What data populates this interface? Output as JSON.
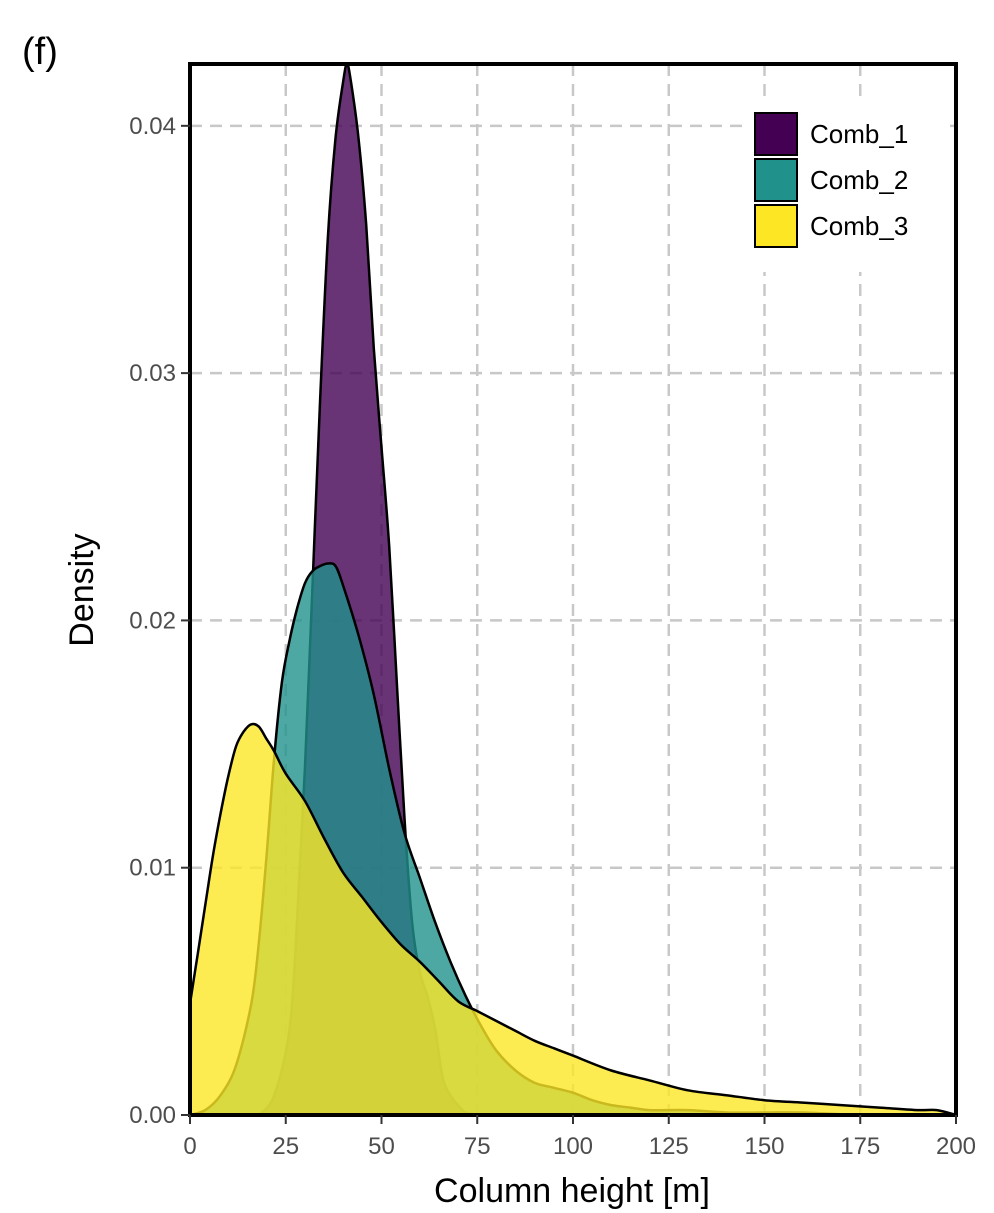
{
  "panel_label": "(f)",
  "chart_data": {
    "type": "area",
    "title": "",
    "xlabel": "Column height [m]",
    "ylabel": "Density",
    "xlim": [
      0,
      200
    ],
    "ylim": [
      0,
      0.0425
    ],
    "x_ticks": [
      0,
      25,
      50,
      75,
      100,
      125,
      150,
      175,
      200
    ],
    "x_tick_labels": [
      "0",
      "25",
      "50",
      "75",
      "100",
      "125",
      "150",
      "175",
      "200"
    ],
    "y_ticks": [
      0,
      0.01,
      0.02,
      0.03,
      0.04
    ],
    "y_tick_labels": [
      "0.00",
      "0.01",
      "0.02",
      "0.03",
      "0.04"
    ],
    "grid": true,
    "legend_position": "top-right",
    "series": [
      {
        "name": "Comb_1",
        "color": "#440154",
        "x": [
          18,
          22,
          26,
          28,
          30,
          32,
          34,
          36,
          38,
          40,
          41,
          42,
          44,
          46,
          48,
          50,
          52,
          54,
          56,
          58,
          60,
          62,
          64,
          66,
          68,
          70,
          72,
          76
        ],
        "y": [
          0.0,
          0.0008,
          0.0035,
          0.008,
          0.014,
          0.0215,
          0.029,
          0.0355,
          0.0395,
          0.0418,
          0.0425,
          0.0418,
          0.0395,
          0.036,
          0.031,
          0.027,
          0.023,
          0.0175,
          0.012,
          0.0078,
          0.0058,
          0.0048,
          0.0035,
          0.0015,
          0.0008,
          0.0004,
          0.0001,
          0.0
        ]
      },
      {
        "name": "Comb_2",
        "color": "#21918c",
        "x": [
          0,
          4,
          8,
          12,
          16,
          18,
          20,
          22,
          24,
          26,
          28,
          30,
          32,
          34,
          36,
          38,
          40,
          44,
          48,
          52,
          56,
          60,
          64,
          68,
          72,
          76,
          80,
          85,
          90,
          95,
          100,
          105,
          110,
          115,
          120,
          130,
          140,
          150,
          160,
          175,
          190,
          200
        ],
        "y": [
          0.0,
          0.0002,
          0.0008,
          0.002,
          0.0045,
          0.007,
          0.0105,
          0.0145,
          0.0175,
          0.0192,
          0.0205,
          0.0215,
          0.022,
          0.0222,
          0.0223,
          0.0222,
          0.0214,
          0.0194,
          0.017,
          0.014,
          0.0114,
          0.0096,
          0.0078,
          0.0062,
          0.0048,
          0.0036,
          0.0026,
          0.0018,
          0.0013,
          0.0011,
          0.0009,
          0.0006,
          0.0004,
          0.0003,
          0.0002,
          0.0002,
          0.0001,
          0.0001,
          0.0001,
          0.0,
          0.0,
          0.0
        ]
      },
      {
        "name": "Comb_3",
        "color": "#fde725",
        "x": [
          0,
          2,
          4,
          6,
          8,
          10,
          12,
          14,
          16,
          18,
          20,
          22,
          25,
          30,
          35,
          40,
          45,
          50,
          55,
          60,
          65,
          70,
          75,
          80,
          85,
          90,
          95,
          100,
          110,
          120,
          130,
          140,
          150,
          160,
          170,
          180,
          190,
          195,
          200
        ],
        "y": [
          0.0045,
          0.0065,
          0.0085,
          0.0105,
          0.0122,
          0.0137,
          0.0149,
          0.0155,
          0.0158,
          0.0157,
          0.0152,
          0.0147,
          0.0138,
          0.0127,
          0.0112,
          0.0098,
          0.0088,
          0.0078,
          0.0069,
          0.0062,
          0.0054,
          0.0046,
          0.0042,
          0.0038,
          0.0034,
          0.003,
          0.0027,
          0.0024,
          0.0018,
          0.0014,
          0.001,
          0.0008,
          0.0006,
          0.0005,
          0.0004,
          0.0003,
          0.0002,
          0.0002,
          0.0
        ]
      }
    ]
  }
}
